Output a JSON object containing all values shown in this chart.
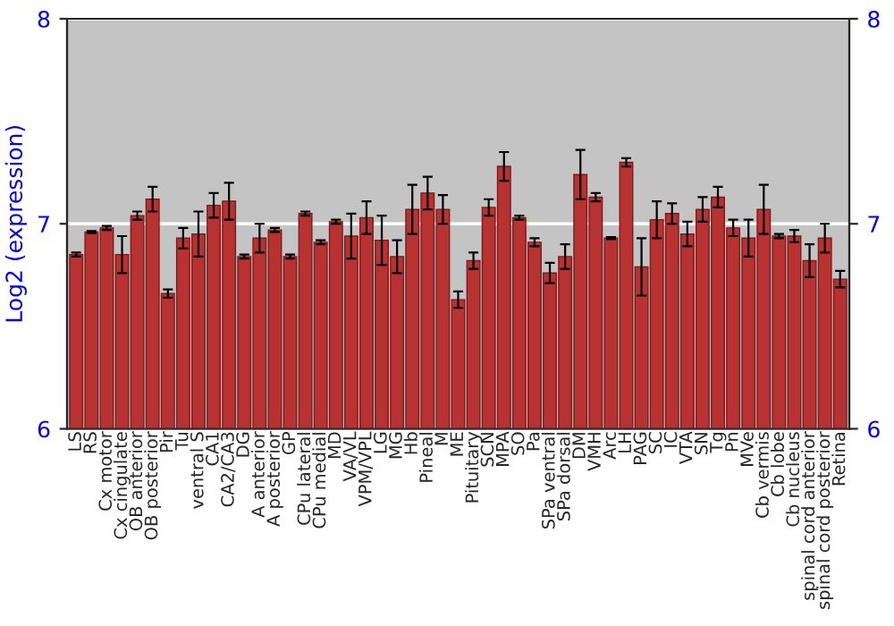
{
  "chart_data": {
    "type": "bar",
    "ylabel": "Log2 (expression)",
    "y2label": null,
    "categories": [
      "LS",
      "RS",
      "Cx motor",
      "Cx cingulate",
      "OB anterior",
      "OB posterior",
      "Pir",
      "Tu",
      "ventral S",
      "CA1",
      "CA2/CA3",
      "DG",
      "A anterior",
      "A posterior",
      "GP",
      "CPu lateral",
      "CPu medial",
      "MD",
      "VA/VL",
      "VPM/VPL",
      "LG",
      "MG",
      "Hb",
      "Pineal",
      "M",
      "ME",
      "Pituitary",
      "SCN",
      "MPA",
      "SO",
      "Pa",
      "SPa ventral",
      "SPa dorsal",
      "DM",
      "VMH",
      "Arc",
      "LH",
      "PAG",
      "SC",
      "IC",
      "VTA",
      "SN",
      "Tg",
      "Pn",
      "MVe",
      "Cb vermis",
      "Cb lobe",
      "Cb nucleus",
      "spinal cord anterior",
      "spinal cord posterior",
      "Retina"
    ],
    "values": [
      6.85,
      6.96,
      6.98,
      6.85,
      7.04,
      7.12,
      6.66,
      6.93,
      6.95,
      7.09,
      7.11,
      6.84,
      6.93,
      6.97,
      6.84,
      7.05,
      6.91,
      7.01,
      6.94,
      7.03,
      6.92,
      6.84,
      7.07,
      7.15,
      7.07,
      6.63,
      6.82,
      7.08,
      7.28,
      7.03,
      6.91,
      6.76,
      6.84,
      7.24,
      7.13,
      6.93,
      7.3,
      6.79,
      7.02,
      7.05,
      6.95,
      7.07,
      7.13,
      6.98,
      6.93,
      7.07,
      6.94,
      6.94,
      6.82,
      6.93,
      6.73
    ],
    "errors": [
      0.01,
      0.005,
      0.01,
      0.09,
      0.02,
      0.06,
      0.02,
      0.05,
      0.11,
      0.06,
      0.09,
      0.01,
      0.07,
      0.01,
      0.01,
      0.01,
      0.01,
      0.01,
      0.11,
      0.08,
      0.12,
      0.08,
      0.12,
      0.08,
      0.07,
      0.04,
      0.04,
      0.04,
      0.07,
      0.01,
      0.02,
      0.05,
      0.06,
      0.12,
      0.02,
      0.005,
      0.02,
      0.14,
      0.09,
      0.05,
      0.06,
      0.06,
      0.05,
      0.04,
      0.09,
      0.12,
      0.01,
      0.03,
      0.08,
      0.07,
      0.04
    ],
    "color": "#b83232",
    "ylim": [
      6,
      8
    ],
    "yticks": [
      6,
      7,
      8
    ],
    "y2lim": [
      6,
      8
    ],
    "y2ticks": [
      6,
      7,
      8
    ],
    "grid": "y",
    "legend": false
  }
}
